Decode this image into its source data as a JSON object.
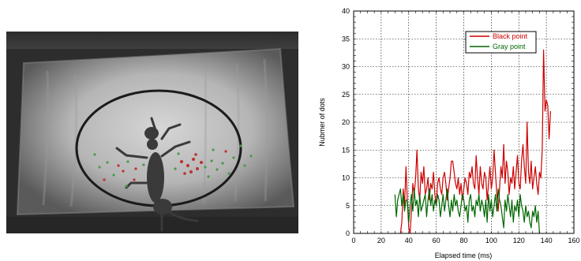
{
  "chart_data": {
    "type": "line",
    "xlabel": "Elapsed time (ms)",
    "ylabel": "Nubmer of dots",
    "xlim": [
      0,
      160
    ],
    "ylim": [
      0,
      40
    ],
    "xticks": [
      0,
      20,
      40,
      60,
      80,
      100,
      120,
      140,
      160
    ],
    "yticks": [
      0,
      5,
      10,
      15,
      20,
      25,
      30,
      35,
      40
    ],
    "grid": true,
    "legend_position": "top-right",
    "series": [
      {
        "name": "Black point",
        "color": "#cc0000",
        "x": [
          34,
          35,
          36,
          37,
          38,
          39,
          40,
          41,
          42,
          43,
          44,
          45,
          46,
          47,
          48,
          49,
          50,
          51,
          52,
          53,
          54,
          55,
          56,
          57,
          58,
          59,
          60,
          61,
          62,
          63,
          64,
          65,
          66,
          67,
          68,
          69,
          70,
          71,
          72,
          73,
          74,
          75,
          76,
          77,
          78,
          79,
          80,
          81,
          82,
          83,
          84,
          85,
          86,
          87,
          88,
          89,
          90,
          91,
          92,
          93,
          94,
          95,
          96,
          97,
          98,
          99,
          100,
          101,
          102,
          103,
          104,
          105,
          106,
          107,
          108,
          109,
          110,
          111,
          112,
          113,
          114,
          115,
          116,
          117,
          118,
          119,
          120,
          121,
          122,
          123,
          124,
          125,
          126,
          127,
          128,
          129,
          130,
          131,
          132,
          133,
          134,
          135,
          136,
          137,
          138,
          139,
          140,
          141,
          142,
          143
        ],
        "y": [
          0,
          2,
          8,
          5,
          12,
          6,
          1,
          0,
          4,
          9,
          7,
          10,
          15,
          8,
          6,
          11,
          9,
          12,
          7,
          8,
          10,
          6,
          9,
          8,
          11,
          7,
          5,
          9,
          10,
          8,
          7,
          10,
          11,
          9,
          6,
          8,
          10,
          13,
          13,
          11,
          9,
          8,
          10,
          7,
          9,
          6,
          8,
          10,
          9,
          7,
          11,
          10,
          12,
          9,
          8,
          14,
          10,
          7,
          12,
          9,
          8,
          11,
          10,
          6,
          9,
          12,
          8,
          10,
          15,
          11,
          7,
          4,
          8,
          12,
          10,
          16,
          9,
          13,
          11,
          7,
          10,
          9,
          12,
          8,
          11,
          14,
          9,
          8,
          13,
          16,
          12,
          9,
          20,
          11,
          9,
          13,
          8,
          10,
          12,
          9,
          7,
          11,
          10,
          15,
          33,
          22,
          24,
          23,
          17,
          22
        ]
      },
      {
        "name": "Gray point",
        "color": "#006600",
        "x": [
          30,
          31,
          32,
          33,
          34,
          35,
          36,
          37,
          38,
          39,
          40,
          41,
          42,
          43,
          44,
          45,
          46,
          47,
          48,
          49,
          50,
          51,
          52,
          53,
          54,
          55,
          56,
          57,
          58,
          59,
          60,
          61,
          62,
          63,
          64,
          65,
          66,
          67,
          68,
          69,
          70,
          71,
          72,
          73,
          74,
          75,
          76,
          77,
          78,
          79,
          80,
          81,
          82,
          83,
          84,
          85,
          86,
          87,
          88,
          89,
          90,
          91,
          92,
          93,
          94,
          95,
          96,
          97,
          98,
          99,
          100,
          101,
          102,
          103,
          104,
          105,
          106,
          107,
          108,
          109,
          110,
          111,
          112,
          113,
          114,
          115,
          116,
          117,
          118,
          119,
          120,
          121,
          122,
          123,
          124,
          125,
          126,
          127,
          128,
          129,
          130,
          131,
          132,
          133,
          134,
          135
        ],
        "y": [
          7,
          3,
          6,
          7,
          8,
          5,
          7,
          4,
          6,
          6,
          2,
          5,
          7,
          4,
          8,
          5,
          6,
          3,
          7,
          4,
          5,
          6,
          7,
          3,
          6,
          8,
          5,
          7,
          4,
          6,
          5,
          7,
          6,
          3,
          5,
          7,
          4,
          6,
          8,
          5,
          3,
          6,
          4,
          7,
          5,
          6,
          4,
          3,
          5,
          7,
          6,
          4,
          5,
          2,
          6,
          7,
          4,
          5,
          3,
          6,
          5,
          7,
          4,
          6,
          5,
          3,
          6,
          2,
          7,
          4,
          6,
          3,
          5,
          7,
          4,
          8,
          6,
          5,
          3,
          1,
          6,
          4,
          7,
          5,
          3,
          6,
          2,
          5,
          4,
          6,
          3,
          7,
          5,
          4,
          2,
          5,
          3,
          4,
          2,
          1,
          4,
          3,
          5,
          2,
          4,
          0
        ]
      }
    ]
  }
}
